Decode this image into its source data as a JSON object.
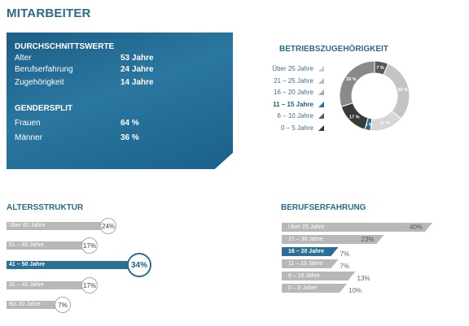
{
  "title": "MITARBEITER",
  "summary": {
    "heading": "DURCHSCHNITTSWERTE",
    "rows": [
      {
        "label": "Alter",
        "value": "53 Jahre"
      },
      {
        "label": "Berufserfahrung",
        "value": "24 Jahre"
      },
      {
        "label": "Zugehörigkeit",
        "value": "14 Jahre"
      }
    ],
    "gender_heading": "GENDERSPLIT",
    "gender_rows": [
      {
        "label": "Frauen",
        "value": "64 %"
      },
      {
        "label": "Männer",
        "value": "36 %"
      }
    ]
  },
  "chart_data": [
    {
      "type": "pie",
      "title": "BETRIEBSZUGEHÖRIGKEIT",
      "categories": [
        "Über 25 Jahre",
        "21 – 25 Jahre",
        "16 – 20 Jahre",
        "11 – 15 Jahre",
        "6 – 10 Jahre",
        "0 – 5 Jahre"
      ],
      "values": [
        7,
        33,
        17,
        3,
        17,
        33
      ],
      "slice_order_clockwise_from_top": [
        "Über 25 Jahre",
        "0 – 5 Jahre",
        "6 – 10 Jahre",
        "11 – 15 Jahre",
        "16 – 20 Jahre",
        "21 – 25 Jahre"
      ],
      "slice_values_clockwise_from_top": [
        7,
        33,
        17,
        3,
        17,
        33
      ],
      "slice_labels_clockwise_from_top": [
        "7 %",
        "33 %",
        "17 %",
        "3 %",
        "17 %",
        "33 %"
      ],
      "highlight": "11 – 15 Jahre",
      "colors": [
        "#5a5a5a",
        "#b0b0b0",
        "#cfcfcf",
        "#2a6f94",
        "#3a3a3a",
        "#7a7a7a"
      ]
    },
    {
      "type": "bar",
      "title": "ALTERSSTRUKTUR",
      "categories": [
        "Über 60 Jahre",
        "51 – 60 Jahre",
        "41 – 50 Jahre",
        "31 – 40 Jahre",
        "Bis 30 Jahre"
      ],
      "values": [
        24,
        17,
        34,
        17,
        7
      ],
      "labels": [
        "24%",
        "17%",
        "34%",
        "17%",
        "7%"
      ],
      "highlight": "41 – 50 Jahre"
    },
    {
      "type": "bar",
      "title": "BERUFSERFAHRUNG",
      "categories": [
        "Über 25 Jahre",
        "21 – 30 Jahre",
        "16 – 20 Jahre",
        "11 – 15 Jahre",
        "6 – 10 Jahre",
        "0 – 5 Jahre"
      ],
      "values": [
        40,
        23,
        7,
        7,
        13,
        10
      ],
      "labels": [
        "40%",
        "23%",
        "7%",
        "7%",
        "13%",
        "10%"
      ],
      "highlight": "16 – 20 Jahre"
    }
  ],
  "colors": {
    "accent": "#2a6f94",
    "title": "#2b6a8c",
    "bar_gray": "#b8b8b8"
  }
}
